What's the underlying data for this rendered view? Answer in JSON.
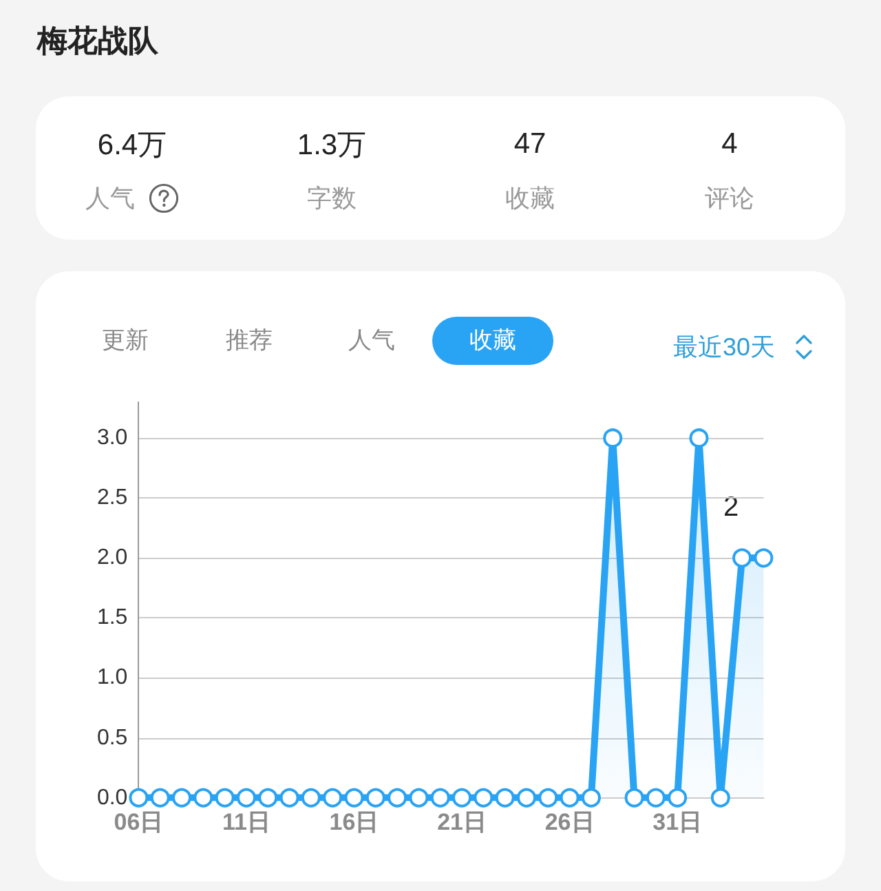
{
  "chart_data": {
    "type": "area",
    "title": "梅花战队",
    "annotations": [
      "6.4万",
      "人气",
      "1.3万",
      "字数",
      "47",
      "收藏",
      "4",
      "评论",
      "更新",
      "推荐",
      "人气",
      "收藏",
      "最近30天",
      "2"
    ],
    "categories": [
      "06日",
      null,
      null,
      null,
      null,
      "11日",
      null,
      null,
      null,
      null,
      "16日",
      null,
      null,
      null,
      null,
      "21日",
      null,
      null,
      null,
      null,
      "26日",
      null,
      null,
      null,
      null,
      "31日",
      null,
      null,
      null,
      null
    ],
    "values": [
      0,
      0,
      0,
      0,
      0,
      0,
      0,
      0,
      0,
      0,
      0,
      0,
      0,
      0,
      0,
      0,
      0,
      0,
      0,
      0,
      0,
      0,
      3,
      0,
      0,
      0,
      3,
      0,
      2,
      2
    ],
    "color": "#29a3f3",
    "ylim": [
      0,
      3.3
    ],
    "yticks": [
      {
        "value": 0,
        "label": "0.0"
      },
      {
        "value": 0.5,
        "label": "0.5"
      },
      {
        "value": 1,
        "label": "1.0"
      },
      {
        "value": 1.5,
        "label": "1.5"
      },
      {
        "value": 2,
        "label": "2.0"
      },
      {
        "value": 2.5,
        "label": "2.5"
      },
      {
        "value": 3,
        "label": "3.0"
      }
    ],
    "grid": "y",
    "marker": "circle",
    "line_style": "solid"
  }
}
